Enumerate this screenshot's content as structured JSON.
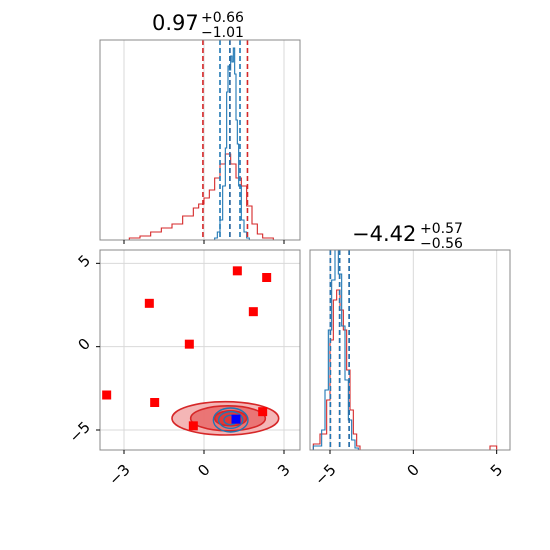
{
  "chart_data": {
    "type": "corner",
    "parameters": [
      {
        "title_value": "0.97",
        "title_plus": "+0.66",
        "title_minus": "−1.01",
        "range": [
          -3.9,
          3.6
        ],
        "ticks": [
          -3,
          0,
          3
        ],
        "tick_labels": [
          "−3",
          "0",
          "3"
        ]
      },
      {
        "title_value": "−4.42",
        "title_plus": "+0.57",
        "title_minus": "−0.56",
        "range": [
          -6.2,
          5.8
        ],
        "ticks": [
          -5,
          0,
          5
        ],
        "tick_labels": [
          "−5",
          "0",
          "5"
        ]
      }
    ],
    "series": [
      {
        "name": "",
        "color": "#1f77b4",
        "quantiles_param1": [
          0.6,
          0.97,
          1.35
        ],
        "quantiles_param2": [
          -4.98,
          -4.42,
          -3.85
        ],
        "hist_param1": {
          "bin_edges": [
            -0.6,
            0.4,
            0.5,
            0.6,
            0.7,
            0.8,
            0.85,
            0.9,
            0.95,
            1.0,
            1.05,
            1.1,
            1.15,
            1.2,
            1.25,
            1.3,
            1.4,
            1.5,
            1.6,
            1.7,
            1.8
          ],
          "heights": [
            0,
            0.01,
            0.04,
            0.1,
            0.27,
            0.46,
            0.74,
            0.87,
            0.85,
            0.92,
            0.89,
            0.96,
            0.83,
            0.6,
            0.48,
            0.27,
            0.1,
            0.04,
            0.01,
            0
          ]
        },
        "hist_param2": {
          "bin_edges": [
            -6.0,
            -5.5,
            -5.3,
            -5.1,
            -4.9,
            -4.7,
            -4.5,
            -4.3,
            -4.1,
            -3.9,
            -3.7,
            -3.5,
            -3.3,
            -3.1
          ],
          "heights": [
            0.02,
            0.1,
            0.3,
            0.6,
            0.85,
            1.0,
            0.88,
            0.62,
            0.35,
            0.15,
            0.05,
            0.01,
            0
          ]
        },
        "contours": [
          {
            "center": [
              1.0,
              -4.4
            ],
            "radius": [
              0.25,
              0.28
            ]
          },
          {
            "center": [
              1.0,
              -4.4
            ],
            "radius": [
              0.45,
              0.5
            ]
          },
          {
            "center": [
              1.0,
              -4.4
            ],
            "radius": [
              0.65,
              0.72
            ]
          }
        ]
      },
      {
        "name": "",
        "color": "#d62728",
        "quantiles_param1": [
          -0.04,
          0.97,
          1.63
        ],
        "quantiles_param2": [
          -4.98,
          -4.42,
          -3.85
        ],
        "hist_param1": {
          "bin_edges": [
            -2.8,
            -2.4,
            -2.0,
            -1.6,
            -1.2,
            -0.8,
            -0.4,
            -0.2,
            0.0,
            0.2,
            0.4,
            0.6,
            0.8,
            1.0,
            1.2,
            1.4,
            1.6,
            1.8,
            2.0,
            2.2,
            2.6,
            3.0
          ],
          "heights": [
            0.01,
            0.02,
            0.04,
            0.06,
            0.08,
            0.12,
            0.16,
            0.18,
            0.21,
            0.25,
            0.31,
            0.38,
            0.43,
            0.38,
            0.31,
            0.27,
            0.17,
            0.08,
            0.03,
            0.01,
            0
          ]
        },
        "hist_param2": {
          "bin_edges": [
            -6.0,
            -5.6,
            -5.2,
            -5.0,
            -4.8,
            -4.6,
            -4.4,
            -4.2,
            -4.0,
            -3.8,
            -3.6,
            -3.4,
            -3.2,
            4.6,
            5.0
          ],
          "heights": [
            0.03,
            0.08,
            0.25,
            0.55,
            0.75,
            0.8,
            0.7,
            0.6,
            0.4,
            0.2,
            0.08,
            0.02,
            0,
            0.02
          ]
        },
        "contours": [
          {
            "center": [
              1.0,
              -4.3
            ],
            "radius": [
              0.6,
              0.45
            ]
          },
          {
            "center": [
              0.9,
              -4.3
            ],
            "radius": [
              1.4,
              0.75
            ]
          },
          {
            "center": [
              0.8,
              -4.3
            ],
            "radius": [
              2.0,
              1.0
            ]
          }
        ]
      }
    ],
    "markers": {
      "color": "#ff0000",
      "points": [
        [
          -3.65,
          -2.9
        ],
        [
          -2.05,
          2.6
        ],
        [
          -1.85,
          -3.35
        ],
        [
          -0.55,
          0.15
        ],
        [
          -0.4,
          -4.75
        ],
        [
          1.25,
          4.55
        ],
        [
          1.85,
          2.1
        ],
        [
          2.35,
          4.15
        ],
        [
          2.2,
          -3.9
        ]
      ]
    },
    "truth": {
      "color": "#0000ff",
      "point": [
        1.2,
        -4.35
      ]
    },
    "grid": true
  }
}
